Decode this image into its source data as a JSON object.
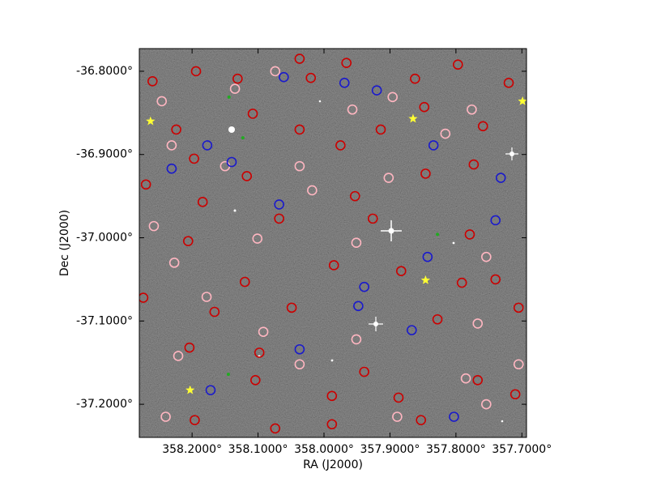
{
  "chart_data": {
    "type": "scatter",
    "x_label": "RA (J2000)",
    "y_label": "Dec (J2000)",
    "xlim": [
      358.28,
      357.693
    ],
    "ylim": [
      -37.2398,
      -36.7728
    ],
    "xticks": [
      {
        "value": 358.2,
        "label": "358.2000°"
      },
      {
        "value": 358.1,
        "label": "358.1000°"
      },
      {
        "value": 358.0,
        "label": "358.0000°"
      },
      {
        "value": 357.9,
        "label": "357.9000°"
      },
      {
        "value": 357.8,
        "label": "357.8000°"
      },
      {
        "value": 357.7,
        "label": "357.7000°"
      }
    ],
    "yticks": [
      {
        "value": -36.8,
        "label": "-36.8000°"
      },
      {
        "value": -36.9,
        "label": "-36.9000°"
      },
      {
        "value": -37.0,
        "label": "-37.0000°"
      },
      {
        "value": -37.1,
        "label": "-37.1000°"
      },
      {
        "value": -37.2,
        "label": "-37.2000°"
      }
    ],
    "series": [
      {
        "color": "#cc0000",
        "marker": "circle",
        "x": [
          358.26,
          358.194,
          358.131,
          358.037,
          357.966,
          358.02,
          357.862,
          357.797,
          357.72,
          358.224,
          358.108,
          358.037,
          357.914,
          357.848,
          357.759,
          358.197,
          358.117,
          357.975,
          357.953,
          357.846,
          357.773,
          358.27,
          358.184,
          358.068,
          357.926,
          357.779,
          358.206,
          358.12,
          357.985,
          357.883,
          357.791,
          357.74,
          358.274,
          358.166,
          358.049,
          357.828,
          357.705,
          358.204,
          358.098,
          357.939,
          357.887,
          357.767,
          358.104,
          357.988,
          357.71,
          358.196,
          358.074,
          357.988,
          357.853
        ],
        "y": [
          -36.812,
          -36.8,
          -36.809,
          -36.785,
          -36.79,
          -36.808,
          -36.809,
          -36.792,
          -36.814,
          -36.87,
          -36.851,
          -36.87,
          -36.87,
          -36.843,
          -36.866,
          -36.905,
          -36.926,
          -36.889,
          -36.95,
          -36.923,
          -36.912,
          -36.936,
          -36.957,
          -36.977,
          -36.977,
          -36.996,
          -37.004,
          -37.053,
          -37.033,
          -37.04,
          -37.054,
          -37.05,
          -37.072,
          -37.089,
          -37.084,
          -37.098,
          -37.084,
          -37.132,
          -37.138,
          -37.161,
          -37.192,
          -37.171,
          -37.171,
          -37.19,
          -37.188,
          -37.219,
          -37.229,
          -37.224,
          -37.219
        ]
      },
      {
        "color": "#ffb6c1",
        "marker": "circle",
        "x": [
          358.246,
          358.135,
          358.074,
          357.957,
          357.896,
          357.816,
          357.776,
          358.231,
          358.15,
          358.037,
          358.018,
          357.902,
          358.258,
          358.227,
          358.101,
          357.951,
          357.754,
          358.178,
          358.092,
          357.951,
          357.767,
          358.221,
          358.037,
          357.785,
          358.24,
          357.889,
          357.754,
          357.705
        ],
        "y": [
          -36.836,
          -36.821,
          -36.8,
          -36.846,
          -36.831,
          -36.875,
          -36.846,
          -36.889,
          -36.914,
          -36.914,
          -36.943,
          -36.928,
          -36.986,
          -37.03,
          -37.001,
          -37.006,
          -37.023,
          -37.071,
          -37.113,
          -37.122,
          -37.103,
          -37.142,
          -37.152,
          -37.169,
          -37.215,
          -37.215,
          -37.2,
          -37.152
        ]
      },
      {
        "color": "#1a1acc",
        "marker": "circle",
        "x": [
          358.061,
          357.969,
          357.92,
          358.177,
          358.14,
          358.231,
          358.068,
          357.834,
          357.732,
          357.74,
          357.843,
          357.939,
          357.948,
          357.867,
          358.172,
          358.037,
          357.803
        ],
        "y": [
          -36.807,
          -36.814,
          -36.823,
          -36.889,
          -36.909,
          -36.917,
          -36.96,
          -36.889,
          -36.928,
          -36.979,
          -37.023,
          -37.059,
          -37.082,
          -37.111,
          -37.183,
          -37.134,
          -37.215
        ]
      },
      {
        "color": "#22aa22",
        "marker": "dot",
        "x": [
          358.144,
          358.123,
          358.145,
          357.828
        ],
        "y": [
          -36.831,
          -36.88,
          -37.164,
          -36.996
        ]
      },
      {
        "color": "#ffff33",
        "marker": "star",
        "x": [
          358.263,
          357.865,
          357.846,
          358.203,
          357.699
        ],
        "y": [
          -36.86,
          -36.857,
          -37.051,
          -37.183,
          -36.836
        ]
      }
    ]
  }
}
